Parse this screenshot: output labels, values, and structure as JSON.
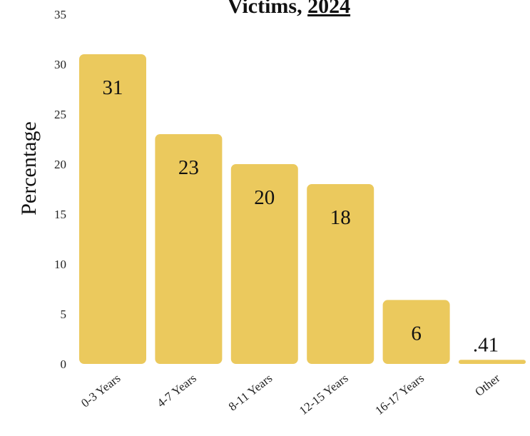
{
  "chart_data": {
    "type": "bar",
    "title": "Victims, 2024",
    "title_plain": "Victims, ",
    "title_underlined": "2024",
    "ylabel": "Percentage",
    "xlabel": "",
    "ylim": [
      0,
      35
    ],
    "yticks": [
      "0",
      "5",
      "10",
      "15",
      "20",
      "25",
      "30",
      "35"
    ],
    "categories": [
      "0-3 Years",
      "4-7 Years",
      "8-11 Years",
      "12-15 Years",
      "16-17 Years",
      "Other"
    ],
    "values": [
      31,
      23,
      20,
      18,
      6.4,
      0.41
    ],
    "data_labels": [
      "31",
      "23",
      "20",
      "18",
      "6",
      ".41"
    ],
    "bar_color": "#ebc95d",
    "grid": false,
    "legend": "none"
  }
}
